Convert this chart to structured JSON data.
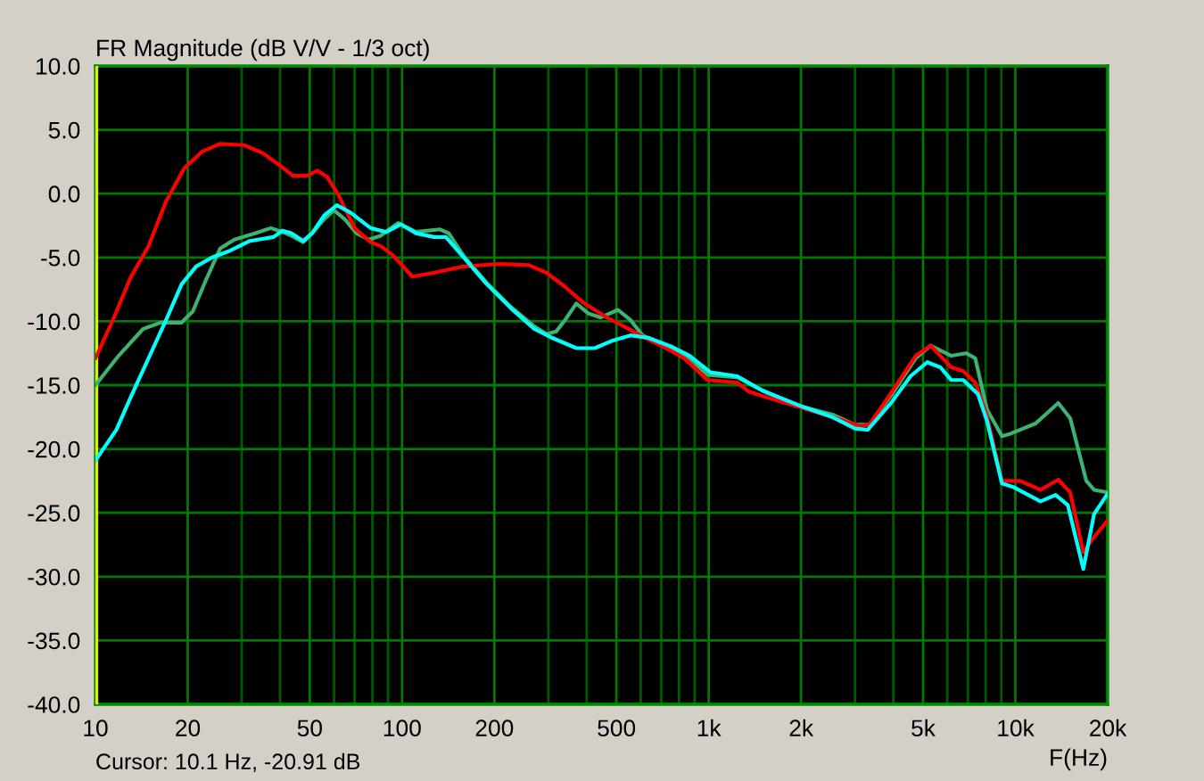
{
  "chart_data": {
    "type": "line",
    "title": "FR Magnitude (dB V/V - 1/3 oct)",
    "xlabel": "F(Hz)",
    "annotations": [
      "Cursor: 10.1 Hz, -20.91 dB"
    ],
    "log": "x",
    "grid": true,
    "xlim": [
      10,
      20000
    ],
    "ylim": [
      -40,
      10
    ],
    "xticks": [
      10,
      20,
      {
        "value": 30,
        "label": null
      },
      {
        "value": 40,
        "label": null
      },
      50,
      {
        "value": 60,
        "label": null
      },
      {
        "value": 70,
        "label": null
      },
      {
        "value": 80,
        "label": null
      },
      {
        "value": 90,
        "label": null
      },
      100,
      200,
      {
        "value": 300,
        "label": null
      },
      {
        "value": 400,
        "label": null
      },
      500,
      {
        "value": 600,
        "label": null
      },
      {
        "value": 700,
        "label": null
      },
      {
        "value": 800,
        "label": null
      },
      {
        "value": 900,
        "label": null
      },
      {
        "value": 1000,
        "label": "1k"
      },
      {
        "value": 2000,
        "label": "2k"
      },
      {
        "value": 3000,
        "label": null
      },
      {
        "value": 4000,
        "label": null
      },
      {
        "value": 5000,
        "label": "5k"
      },
      {
        "value": 6000,
        "label": null
      },
      {
        "value": 7000,
        "label": null
      },
      {
        "value": 8000,
        "label": null
      },
      {
        "value": 9000,
        "label": null
      },
      {
        "value": 10000,
        "label": "10k"
      },
      {
        "value": 20000,
        "label": "20k"
      }
    ],
    "yticks": [
      {
        "value": 10,
        "label": "10.0"
      },
      {
        "value": 5,
        "label": "5.0"
      },
      {
        "value": 0,
        "label": "0.0"
      },
      {
        "value": -5,
        "label": "-5.0"
      },
      {
        "value": -10,
        "label": "-10.0"
      },
      {
        "value": -15,
        "label": "-15.0"
      },
      {
        "value": -20,
        "label": "-20.0"
      },
      {
        "value": -25,
        "label": "-25.0"
      },
      {
        "value": -30,
        "label": "-30.0"
      },
      {
        "value": -35,
        "label": "-35.0"
      },
      {
        "value": -40,
        "label": "-40.0"
      }
    ],
    "ref_lines": [
      {
        "axis": "x",
        "value": 10.1,
        "color": "#e8e800"
      }
    ],
    "series": [
      {
        "color": "#3cb371",
        "x": [
          10,
          11.9,
          14.3,
          16.3,
          19.1,
          20.8,
          22.8,
          25.5,
          28.4,
          33.3,
          37.3,
          40.7,
          43.5,
          47.6,
          50.9,
          55.7,
          60,
          65,
          71,
          78,
          85,
          97,
          111,
          133,
          142,
          159,
          189,
          227,
          270,
          296,
          318,
          340,
          370,
          406,
          444,
          506,
          556,
          608,
          759,
          867,
          992,
          1240,
          1550,
          2025,
          2530,
          3000,
          3340,
          3960,
          4730,
          5290,
          6180,
          6920,
          7400,
          8080,
          9040,
          9650,
          11640,
          13800,
          15100,
          17040,
          18060,
          20000
        ],
        "values": [
          -15.0,
          -12.7,
          -10.6,
          -10.1,
          -10.1,
          -9.2,
          -6.9,
          -4.3,
          -3.6,
          -3.1,
          -2.7,
          -3.0,
          -3.3,
          -3.8,
          -3.1,
          -2.0,
          -1.3,
          -2.0,
          -3.1,
          -3.6,
          -3.3,
          -2.3,
          -3.0,
          -2.8,
          -3.1,
          -4.9,
          -7.0,
          -8.9,
          -10.4,
          -11.0,
          -10.8,
          -9.9,
          -8.6,
          -9.4,
          -9.7,
          -9.1,
          -9.9,
          -11.1,
          -12.1,
          -12.9,
          -14.2,
          -14.4,
          -15.6,
          -16.7,
          -17.3,
          -18.1,
          -18.1,
          -15.7,
          -12.9,
          -11.9,
          -12.7,
          -12.5,
          -12.9,
          -16.9,
          -19.0,
          -18.8,
          -18.0,
          -16.4,
          -17.6,
          -22.5,
          -23.2,
          -23.4
        ]
      },
      {
        "color": "#ff0000",
        "x": [
          10,
          11.4,
          13.0,
          14.9,
          17,
          19.5,
          22.3,
          25.5,
          30.5,
          35,
          40,
          44,
          49,
          53,
          57,
          62,
          70,
          79,
          85,
          93,
          108,
          127,
          159,
          207,
          259,
          296,
          340,
          388,
          465,
          530,
          608,
          725,
          832,
          990,
          1240,
          1350,
          1620,
          2025,
          2530,
          3100,
          3340,
          3960,
          4730,
          5290,
          6180,
          6760,
          7400,
          8080,
          9040,
          10340,
          12080,
          13800,
          15100,
          16660,
          18060,
          20000
        ],
        "values": [
          -12.9,
          -9.9,
          -6.6,
          -4.1,
          -0.6,
          2.0,
          3.3,
          3.9,
          3.8,
          3.2,
          2.2,
          1.4,
          1.4,
          1.8,
          1.3,
          -0.1,
          -2.7,
          -3.8,
          -4.1,
          -4.8,
          -6.5,
          -6.2,
          -5.7,
          -5.5,
          -5.6,
          -6.2,
          -7.3,
          -8.5,
          -9.7,
          -10.4,
          -11.2,
          -12.1,
          -12.9,
          -14.6,
          -14.8,
          -15.5,
          -16.1,
          -16.8,
          -17.5,
          -18.2,
          -18.1,
          -15.5,
          -12.7,
          -11.9,
          -13.6,
          -13.9,
          -14.8,
          -17.4,
          -22.5,
          -22.5,
          -23.2,
          -22.4,
          -23.4,
          -28.1,
          -26.9,
          -25.6
        ]
      },
      {
        "color": "#00ffff",
        "x": [
          10,
          11.7,
          13.0,
          14.9,
          17.0,
          19.1,
          21.3,
          24.0,
          27.3,
          31.9,
          38.1,
          40.7,
          43.5,
          47.6,
          50.9,
          55.7,
          61.3,
          68,
          79,
          89,
          99,
          111,
          127,
          139,
          159,
          189,
          227,
          270,
          309,
          370,
          425,
          487,
          556,
          636,
          759,
          867,
          1013,
          1240,
          1490,
          2025,
          2530,
          3000,
          3300,
          3960,
          4550,
          5160,
          5690,
          6180,
          6760,
          7550,
          8080,
          9040,
          9890,
          12080,
          13530,
          14830,
          16660,
          18060,
          20000
        ],
        "values": [
          -20.9,
          -18.5,
          -16.0,
          -12.9,
          -9.9,
          -7.1,
          -5.7,
          -5.0,
          -4.5,
          -3.7,
          -3.4,
          -2.9,
          -3.1,
          -3.7,
          -3.1,
          -1.7,
          -0.9,
          -1.5,
          -2.7,
          -3.0,
          -2.4,
          -3.1,
          -3.4,
          -3.4,
          -5.0,
          -7.1,
          -9.0,
          -10.6,
          -11.3,
          -12.1,
          -12.1,
          -11.5,
          -11.1,
          -11.3,
          -12.0,
          -12.7,
          -14.0,
          -14.3,
          -15.4,
          -16.7,
          -17.5,
          -18.4,
          -18.5,
          -16.3,
          -14.3,
          -13.2,
          -13.6,
          -14.6,
          -14.6,
          -15.7,
          -17.8,
          -22.7,
          -23.0,
          -24.1,
          -23.6,
          -24.4,
          -29.4,
          -25.1,
          -23.5
        ]
      }
    ]
  }
}
